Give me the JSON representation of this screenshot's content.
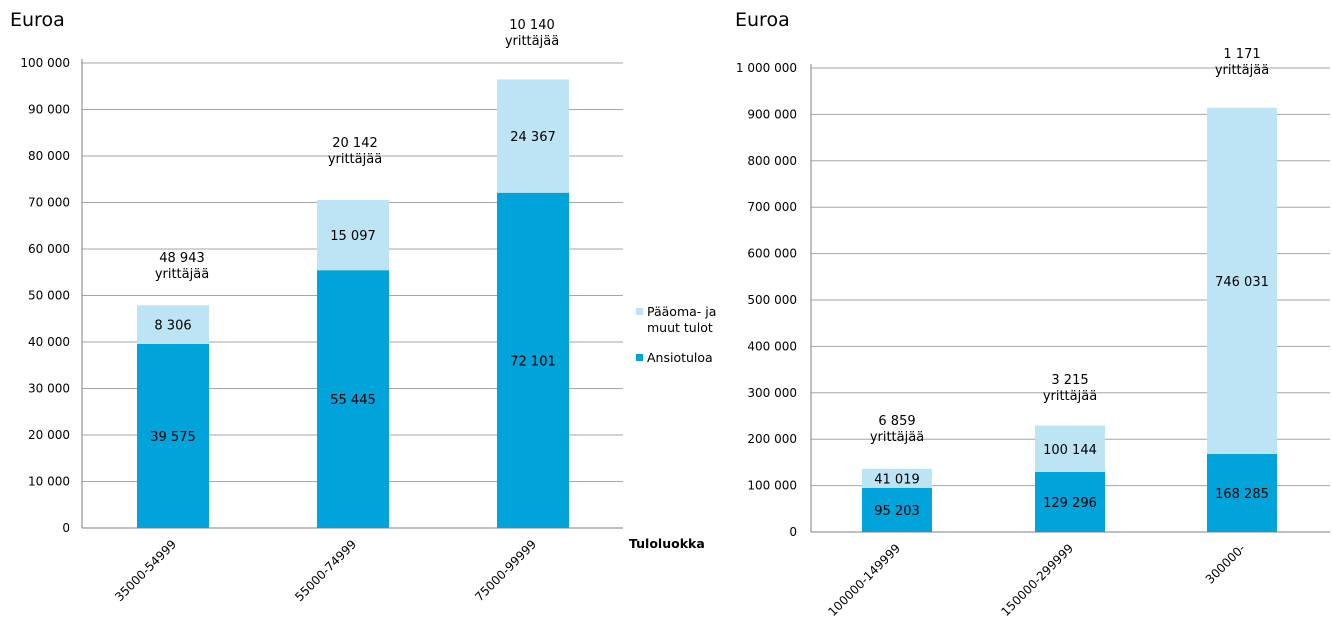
{
  "colors": {
    "ansiotulo": "#00A3DA",
    "paaoma": "#BCE4F4",
    "grid": "#A6A6A6",
    "axis": "#7F7F7F"
  },
  "chart_data": [
    {
      "type": "bar",
      "stacked": true,
      "unit_label": "Euroa",
      "xlabel": "Tuloluokka",
      "categories": [
        "35000-54999",
        "55000-74999",
        "75000-99999"
      ],
      "series": [
        {
          "name": "Ansiotuloa",
          "values": [
            39575,
            55445,
            72101
          ],
          "labels": [
            "39 575",
            "55 445",
            "72 101"
          ]
        },
        {
          "name": "Pääoma- ja muut tulot",
          "values": [
            8306,
            15097,
            24367
          ],
          "labels": [
            "8 306",
            "15 097",
            "24 367"
          ]
        }
      ],
      "annotations": [
        {
          "count": "48 943",
          "text": "yrittäjää"
        },
        {
          "count": "20 142",
          "text": "yrittäjää"
        },
        {
          "count": "10 140",
          "text": "yrittäjää"
        }
      ],
      "ylim": [
        0,
        100000
      ],
      "yticks": [
        {
          "value": 0,
          "label": "0"
        },
        {
          "value": 10000,
          "label": "10 000"
        },
        {
          "value": 20000,
          "label": "20 000"
        },
        {
          "value": 30000,
          "label": "30 000"
        },
        {
          "value": 40000,
          "label": "40 000"
        },
        {
          "value": 50000,
          "label": "50 000"
        },
        {
          "value": 60000,
          "label": "60 000"
        },
        {
          "value": 70000,
          "label": "70 000"
        },
        {
          "value": 80000,
          "label": "80 000"
        },
        {
          "value": 90000,
          "label": "90 000"
        },
        {
          "value": 100000,
          "label": "100 000"
        }
      ],
      "grid": true,
      "legend": {
        "position": "right",
        "items": [
          {
            "label_lines": [
              "Pääoma- ja",
              "muut tulot"
            ]
          },
          {
            "label_lines": [
              "Ansiotuloa"
            ]
          }
        ]
      }
    },
    {
      "type": "bar",
      "stacked": true,
      "unit_label": "Euroa",
      "categories": [
        "100000-149999",
        "150000-299999",
        "300000-"
      ],
      "series": [
        {
          "name": "Ansiotuloa",
          "values": [
            95203,
            129296,
            168285
          ],
          "labels": [
            "95 203",
            "129 296",
            "168 285"
          ]
        },
        {
          "name": "Pääoma- ja muut tulot",
          "values": [
            41019,
            100144,
            746031
          ],
          "labels": [
            "41 019",
            "100 144",
            "746 031"
          ]
        }
      ],
      "annotations": [
        {
          "count": "6 859",
          "text": "yrittäjää"
        },
        {
          "count": "3 215",
          "text": "yrittäjää"
        },
        {
          "count": "1 171",
          "text": "yrittäjää"
        }
      ],
      "ylim": [
        0,
        1000000
      ],
      "yticks": [
        {
          "value": 0,
          "label": "0"
        },
        {
          "value": 100000,
          "label": "100 000"
        },
        {
          "value": 200000,
          "label": "200 000"
        },
        {
          "value": 300000,
          "label": "300 000"
        },
        {
          "value": 400000,
          "label": "400 000"
        },
        {
          "value": 500000,
          "label": "500 000"
        },
        {
          "value": 600000,
          "label": "600 000"
        },
        {
          "value": 700000,
          "label": "700 000"
        },
        {
          "value": 800000,
          "label": "800 000"
        },
        {
          "value": 900000,
          "label": "900 000"
        },
        {
          "value": 1000000,
          "label": "1 000 000"
        }
      ],
      "grid": true
    }
  ]
}
